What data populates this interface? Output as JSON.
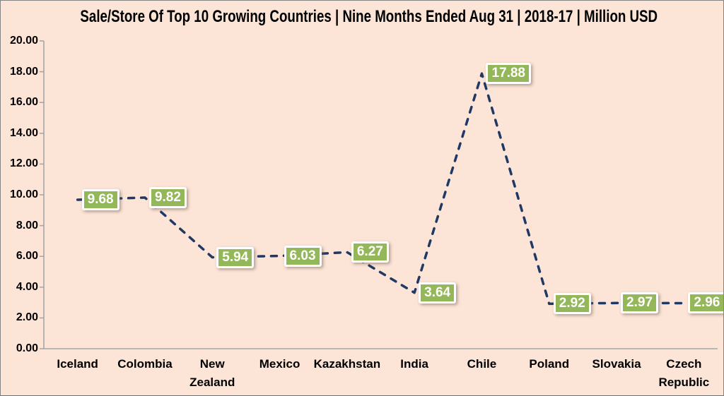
{
  "window": {
    "background_color": "#FCE4D6",
    "border_color": "#848484"
  },
  "chart_data": {
    "type": "line",
    "title": "Sale/Store Of Top 10 Growing Countries | Nine Months Ended Aug 31 | 2018-17 | Million USD",
    "categories": [
      "Iceland",
      "Colombia",
      "New Zealand",
      "Mexico",
      "Kazakhstan",
      "India",
      "Chile",
      "Poland",
      "Slovakia",
      "Czech Republic"
    ],
    "series": [
      {
        "name": "Sale/Store",
        "values": [
          9.68,
          9.82,
          5.94,
          6.03,
          6.27,
          3.64,
          17.88,
          2.92,
          2.97,
          2.96
        ]
      }
    ],
    "data_labels": [
      "9.68",
      "9.82",
      "5.94",
      "6.03",
      "6.27",
      "3.64",
      "17.88",
      "2.92",
      "2.97",
      "2.96"
    ],
    "ytick_labels": [
      "0.00",
      "2.00",
      "4.00",
      "6.00",
      "8.00",
      "10.00",
      "12.00",
      "14.00",
      "16.00",
      "18.00",
      "20.00"
    ],
    "ylim": [
      0,
      20
    ],
    "ytick_step": 2,
    "xlabel": "",
    "ylabel": "",
    "grid": false,
    "legend": "none",
    "line_style": "dashed",
    "line_color": "#203864",
    "axis_color": "#A6A6A6",
    "data_label_bg": "#94B75A",
    "data_label_text_color": "#FFFFFF",
    "data_label_position": "right",
    "text_color": "#000000"
  }
}
